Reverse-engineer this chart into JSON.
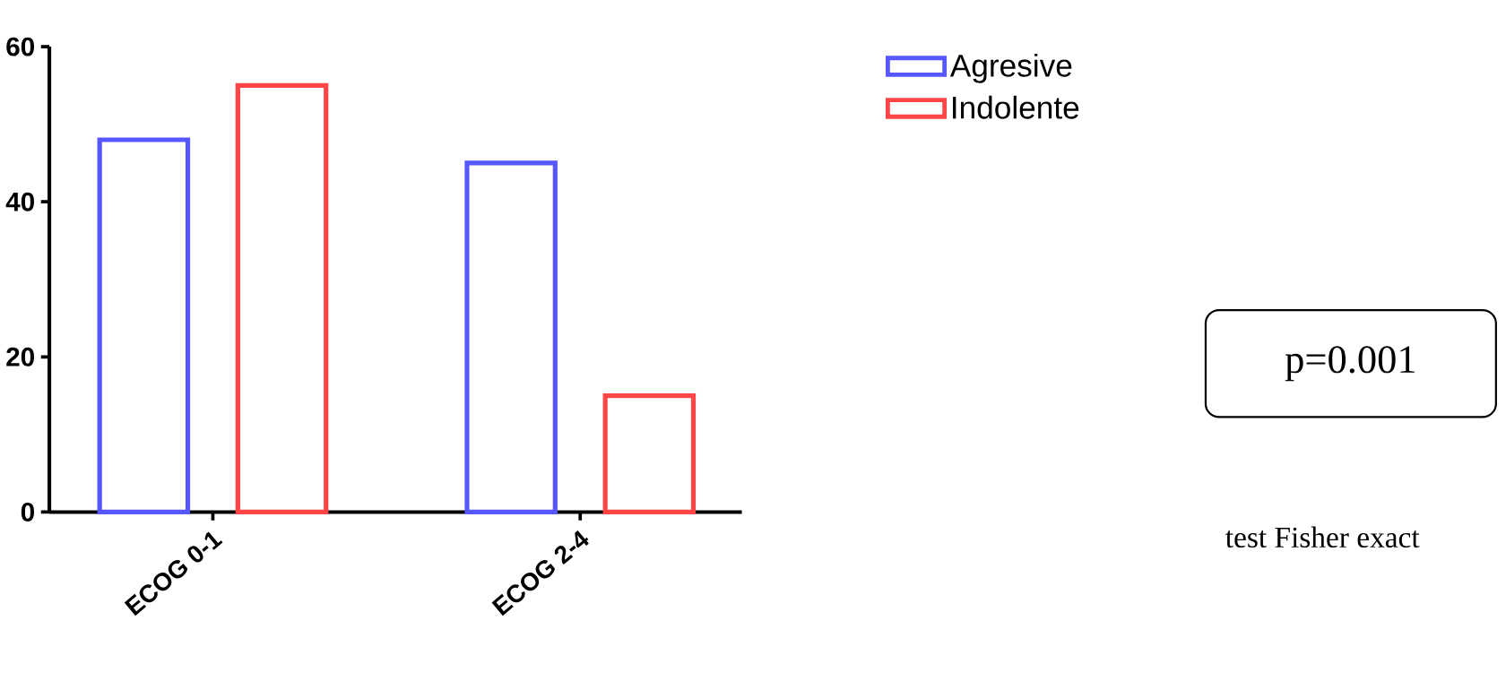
{
  "chart_data": {
    "type": "bar",
    "categories": [
      "ECOG 0-1",
      "ECOG 2-4"
    ],
    "series": [
      {
        "name": "Agresive",
        "color": "#5757ff",
        "values": [
          48,
          45
        ]
      },
      {
        "name": "Indolente",
        "color": "#ff4545",
        "values": [
          55,
          15
        ]
      }
    ],
    "ylim": [
      0,
      60
    ],
    "yticks": [
      0,
      20,
      40,
      60
    ],
    "legend": "top right",
    "annotations": [
      "p=0.001",
      "test Fisher exact"
    ]
  }
}
